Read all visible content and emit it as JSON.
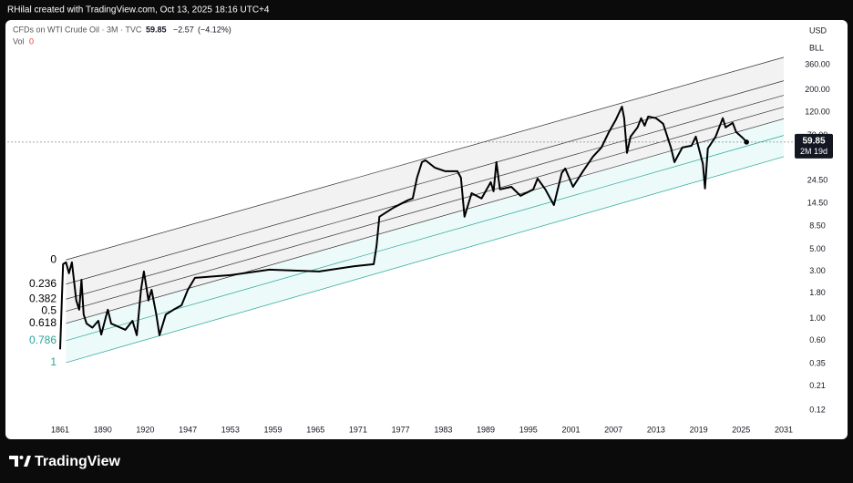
{
  "attribution": "RHilal created with TradingView.com, Oct 13, 2025 18:16 UTC+4",
  "branding": "TradingView",
  "chart_data": {
    "type": "line",
    "title": "CFDs on WTI Crude Oil · 3M · TVC",
    "change": "−2.57",
    "change_pct": "(−4.12%)",
    "volume_label": "Vol",
    "volume": 0,
    "currency": "USD",
    "unit": "BLL",
    "countdown": "2M 19d",
    "log_scale": true,
    "color": "#000000",
    "x": [
      1861,
      1863,
      1865,
      1867,
      1869,
      1872,
      1874,
      1875.5,
      1877,
      1879,
      1883,
      1887,
      1889,
      1893.6,
      1896,
      1900,
      1906,
      1911,
      1914,
      1917,
      1919,
      1922,
      1924,
      1927,
      1929,
      1933,
      1938,
      1943,
      1947,
      1948,
      1953,
      1958.5,
      1965.5,
      1970.5,
      1973.2,
      1973.6,
      1974,
      1976,
      1978,
      1978.7,
      1979.3,
      1980,
      1980.5,
      1981.8,
      1983.3,
      1985,
      1985.5,
      1986,
      1987,
      1988.4,
      1989.7,
      1990.1,
      1990.5,
      1991,
      1992.6,
      1993.9,
      1995.7,
      1996.3,
      1997.4,
      1998.6,
      1999.7,
      2000.2,
      2001.3,
      2002.7,
      2004.1,
      2005.3,
      2006.3,
      2007.3,
      2008.2,
      2008.5,
      2008.9,
      2009.4,
      2010.4,
      2010.9,
      2011.4,
      2011.9,
      2013,
      2014,
      2015.1,
      2015.6,
      2016.7,
      2018,
      2018.6,
      2019.6,
      2019.9,
      2020.3,
      2021.4,
      2022.4,
      2022.8,
      2023.8,
      2024.3,
      2025.3,
      2025.75
    ],
    "values": [
      0.49,
      3.53,
      3.68,
      2.86,
      3.68,
      1.52,
      1.23,
      2.46,
      1.1,
      0.89,
      0.81,
      0.95,
      0.69,
      1.23,
      0.89,
      0.84,
      0.77,
      0.95,
      0.68,
      1.95,
      2.98,
      1.52,
      1.95,
      1.1,
      0.68,
      1.1,
      1.23,
      1.36,
      1.95,
      2.57,
      2.74,
      3.11,
      2.98,
      3.37,
      3.53,
      5.39,
      10.6,
      13.1,
      15.5,
      16.2,
      26.2,
      37.6,
      39.2,
      33.1,
      30.4,
      30.4,
      26.2,
      10.6,
      18.3,
      16.2,
      23.6,
      19.1,
      37.6,
      20.0,
      21.2,
      17.2,
      20.0,
      25.7,
      20.0,
      13.9,
      29.2,
      32.4,
      21.2,
      30.4,
      42.7,
      52.7,
      74.0,
      99.3,
      136,
      104,
      46.5,
      67.9,
      84.0,
      104,
      87.5,
      108,
      104,
      91.4,
      52.7,
      37.6,
      52.7,
      55.0,
      67.9,
      36.0,
      20.4,
      51.6,
      67.9,
      104,
      84.0,
      93.3,
      75.5,
      65.1,
      59.85
    ],
    "xlim": [
      1861,
      2031
    ],
    "xticks": [
      1861,
      1890,
      1920,
      1947,
      1953,
      1959,
      1965,
      1971,
      1977,
      1983,
      1989,
      1995,
      2001,
      2007,
      2013,
      2019,
      2025,
      2031
    ],
    "ylim": [
      0.093,
      692
    ],
    "yticks": [
      {
        "value": 0.12,
        "label": "0.12"
      },
      {
        "value": 0.21,
        "label": "0.21"
      },
      {
        "value": 0.35,
        "label": "0.35"
      },
      {
        "value": 0.6,
        "label": "0.60"
      },
      {
        "value": 1,
        "label": "1.00"
      },
      {
        "value": 1.8,
        "label": "1.80"
      },
      {
        "value": 3,
        "label": "3.00"
      },
      {
        "value": 5,
        "label": "5.00"
      },
      {
        "value": 8.5,
        "label": "8.50"
      },
      {
        "value": 14.5,
        "label": "14.50"
      },
      {
        "value": 24.5,
        "label": "24.50"
      },
      {
        "value": 70,
        "label": "70.00"
      },
      {
        "value": 120,
        "label": "120.00"
      },
      {
        "value": 200,
        "label": "200.00"
      },
      {
        "value": 360,
        "label": "360.00"
      }
    ],
    "fib_channel": {
      "x": [
        1865,
        2031
      ],
      "level_0": [
        3.9,
        427
      ],
      "level_1": [
        0.36,
        42.6
      ],
      "levels": [
        0,
        0.236,
        0.382,
        0.5,
        0.618,
        0.786,
        1
      ],
      "level_colors": [
        "#333333",
        "#333333",
        "#333333",
        "#333333",
        "#333333",
        "#26a69a",
        "#26a69a"
      ]
    }
  }
}
